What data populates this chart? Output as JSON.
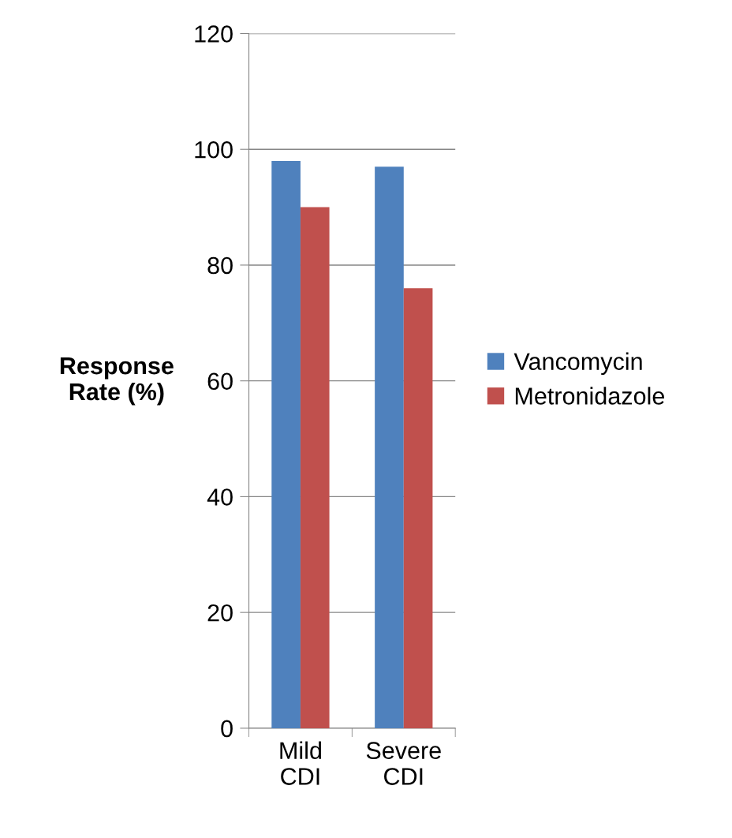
{
  "chart_data": {
    "type": "bar",
    "ylabel": "Response\nRate (%)",
    "categories": [
      "Mild\nCDI",
      "Severe\nCDI"
    ],
    "series": [
      {
        "name": "Vancomycin",
        "color": "#4f81bd",
        "values": [
          98,
          97
        ]
      },
      {
        "name": "Metronidazole",
        "color": "#c0504d",
        "values": [
          90,
          76
        ]
      }
    ],
    "ylim": [
      0,
      120
    ],
    "yticks": [
      0,
      20,
      40,
      60,
      80,
      100,
      120
    ],
    "grid": "y",
    "legend": "right"
  }
}
